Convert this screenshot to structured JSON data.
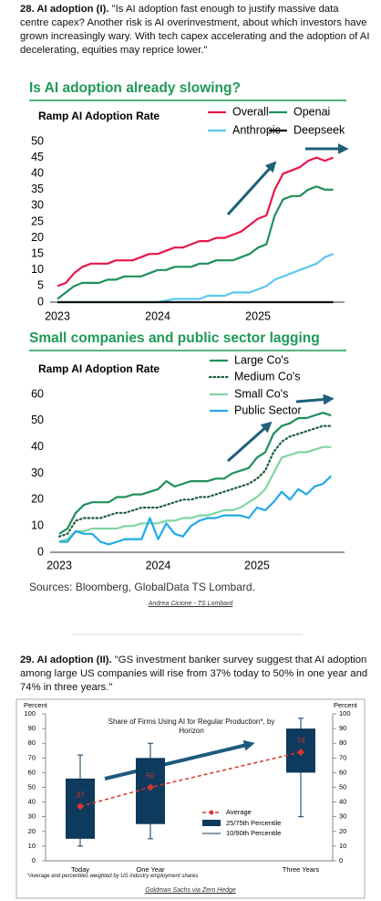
{
  "sections": [
    {
      "heading": "28. AI adoption (I).",
      "text": "\"Is AI adoption fast enough to justify massive data centre capex? Another risk is AI overinvestment, about which investors have grown increasingly wary. With tech capex accelerating and the adoption of AI decelerating, equities may reprice lower.\""
    },
    {
      "heading": "29. AI adoption (II).",
      "text": "\"GS investment banker survey suggest that AI adoption among large US companies will rise from 37% today to 50% in one year and 74% in three years.\""
    }
  ],
  "source": "Sources: Bloomberg, GlobalData TS Lombard.",
  "credits": [
    "Andrea Cicione - TS Lombard",
    "Goldman Sachs via Zero Hedge"
  ],
  "chart_data": [
    {
      "type": "line",
      "title": "Is AI adoption already slowing?",
      "subtitle": "Ramp AI Adoption Rate",
      "categories": [
        "2023",
        null,
        null,
        null,
        null,
        null,
        null,
        null,
        null,
        null,
        null,
        null,
        "2024",
        null,
        null,
        null,
        null,
        null,
        null,
        null,
        null,
        null,
        null,
        null,
        "2025",
        null,
        null,
        null,
        null,
        null,
        null,
        null,
        null,
        null
      ],
      "ylim": [
        0,
        50
      ],
      "yticks": [
        0,
        5,
        10,
        15,
        20,
        25,
        30,
        35,
        40,
        45,
        50
      ],
      "series": [
        {
          "name": "Overall",
          "color": "#e8174a",
          "values": [
            5,
            6,
            9,
            11,
            12,
            12,
            12,
            13,
            13,
            13,
            14,
            15,
            15,
            16,
            17,
            17,
            18,
            19,
            19,
            20,
            20,
            21,
            22,
            24,
            26,
            27,
            35,
            40,
            41,
            42,
            44,
            45,
            44,
            45
          ]
        },
        {
          "name": "Openai",
          "color": "#1f8f5a",
          "values": [
            1,
            3,
            5,
            6,
            6,
            6,
            7,
            7,
            8,
            8,
            8,
            9,
            10,
            10,
            11,
            11,
            11,
            12,
            12,
            13,
            13,
            13,
            14,
            15,
            17,
            18,
            27,
            32,
            33,
            33,
            35,
            36,
            35,
            35
          ]
        },
        {
          "name": "Anthropic",
          "color": "#5bc8ef",
          "values": [
            0,
            0,
            0,
            0,
            0,
            0,
            0,
            0,
            0,
            0,
            0,
            0,
            0,
            0.5,
            1,
            1,
            1,
            1,
            2,
            2,
            2,
            3,
            3,
            3,
            4,
            5,
            7,
            8,
            9,
            10,
            11,
            12,
            14,
            15
          ]
        },
        {
          "name": "Deepseek",
          "color": "#111111",
          "values": [
            0,
            0,
            0,
            0,
            0,
            0,
            0,
            0,
            0,
            0,
            0,
            0,
            0,
            0,
            0,
            0,
            0,
            0,
            0,
            0,
            0,
            0,
            0,
            0,
            0,
            0,
            0,
            0,
            0,
            0,
            0,
            0,
            0,
            0
          ]
        }
      ]
    },
    {
      "type": "line",
      "title": "Small companies and public sector lagging",
      "subtitle": "Ramp AI Adoption Rate",
      "categories": [
        "2023",
        null,
        null,
        null,
        null,
        null,
        null,
        null,
        null,
        null,
        null,
        null,
        "2024",
        null,
        null,
        null,
        null,
        null,
        null,
        null,
        null,
        null,
        null,
        null,
        "2025",
        null,
        null,
        null,
        null,
        null,
        null,
        null,
        null,
        null
      ],
      "ylim": [
        0,
        60
      ],
      "yticks": [
        0,
        10,
        20,
        30,
        40,
        50,
        60
      ],
      "series": [
        {
          "name": "Large Co's",
          "color": "#1f8f5a",
          "values": [
            7,
            9,
            15,
            18,
            19,
            19,
            19,
            21,
            21,
            22,
            22,
            23,
            24,
            27,
            25,
            26,
            27,
            27,
            27,
            28,
            28,
            30,
            31,
            32,
            36,
            38,
            45,
            48,
            49,
            51,
            51,
            52,
            53,
            52
          ]
        },
        {
          "name": "Medium Co's",
          "color": "#1b5e3b",
          "dash": "dotted",
          "values": [
            6,
            7,
            12,
            13,
            13,
            13,
            14,
            15,
            15,
            16,
            17,
            17,
            17,
            18,
            19,
            20,
            20,
            21,
            21,
            22,
            23,
            24,
            25,
            26,
            28,
            31,
            38,
            42,
            44,
            45,
            46,
            47,
            48,
            48
          ]
        },
        {
          "name": "Small Co's",
          "color": "#7fd6a0",
          "values": [
            4,
            5,
            8,
            8,
            9,
            9,
            9,
            9,
            10,
            10,
            11,
            11,
            11,
            12,
            12,
            13,
            13,
            14,
            14,
            15,
            16,
            16,
            17,
            19,
            21,
            24,
            30,
            36,
            37,
            38,
            38,
            39,
            40,
            40
          ]
        },
        {
          "name": "Public Sector",
          "color": "#21a9e8",
          "values": [
            4,
            4,
            8,
            7,
            7,
            4,
            3,
            4,
            5,
            5,
            5,
            13,
            5,
            11,
            7,
            6,
            10,
            12,
            13,
            13,
            14,
            14,
            14,
            13,
            17,
            16,
            19,
            23,
            20,
            24,
            22,
            25,
            26,
            29
          ]
        }
      ]
    },
    {
      "type": "box",
      "title": "Share of Firms Using AI for Regular Production*, by Horizon",
      "y_label": "Percent",
      "y2_label": "Percent",
      "categories": [
        "Today",
        "One Year",
        "Three Years"
      ],
      "ylim": [
        0,
        100
      ],
      "yticks": [
        0,
        10,
        20,
        30,
        40,
        50,
        60,
        70,
        80,
        90,
        100
      ],
      "y2lim": [
        0,
        100
      ],
      "y2ticks": [
        0,
        10,
        20,
        30,
        40,
        50,
        60,
        70,
        80,
        90,
        100
      ],
      "mean": {
        "name": "Average",
        "color": "#d9342b",
        "values": [
          37,
          50,
          74
        ]
      },
      "box": {
        "name": "25/75th Percentile",
        "color": "#0e3a5e",
        "low": [
          15,
          25,
          60
        ],
        "high": [
          56,
          70,
          90
        ]
      },
      "whisker": {
        "name": "10/90th Percentile",
        "color": "#0e3a5e",
        "low": [
          10,
          15,
          30
        ],
        "high": [
          72,
          80,
          97
        ]
      },
      "note": "*Average and percentiles weighted by US industry employment shares"
    }
  ]
}
